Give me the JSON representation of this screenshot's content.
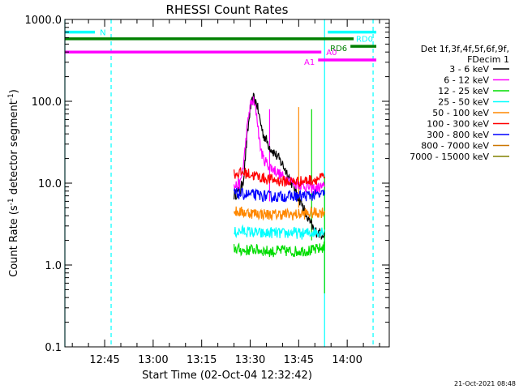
{
  "chart_data": {
    "type": "line",
    "title": "RHESSI Count Rates",
    "xlabel": "Start Time (02-Oct-04 12:32:42)",
    "ylabel_main": "Count Rate (s",
    "ylabel_sup": "-1",
    "ylabel_tail": " detector segment",
    "ylabel_sup2": "-1",
    "ylabel_close": ")",
    "y_scale": "log",
    "ylim": [
      0.1,
      1000
    ],
    "xlim": [
      "12:32:42",
      "14:13"
    ],
    "x_ticks": [
      {
        "t": "12:45",
        "label": "12:45"
      },
      {
        "t": "13:00",
        "label": "13:00"
      },
      {
        "t": "13:15",
        "label": "13:15"
      },
      {
        "t": "13:30",
        "label": "13:30"
      },
      {
        "t": "13:45",
        "label": "13:45"
      },
      {
        "t": "14:00",
        "label": "14:00"
      }
    ],
    "y_ticks": [
      {
        "v": 1000,
        "label": "1000.0"
      },
      {
        "v": 100,
        "label": "100.0"
      },
      {
        "v": 10,
        "label": "10.0"
      },
      {
        "v": 1,
        "label": "1.0"
      },
      {
        "v": 0.1,
        "label": "0.1"
      }
    ],
    "legend_header": [
      "Det 1f,3f,4f,5f,6f,9f,",
      "FDecim 1"
    ],
    "legend_placement": "right",
    "series": [
      {
        "name": "3 - 6 keV",
        "color": "#000000",
        "points": [
          [
            "13:25",
            7.2
          ],
          [
            "13:27",
            8
          ],
          [
            "13:28",
            12
          ],
          [
            "13:29",
            35
          ],
          [
            "13:30",
            80
          ],
          [
            "13:31",
            110
          ],
          [
            "13:32",
            95
          ],
          [
            "13:33",
            60
          ],
          [
            "13:34",
            40
          ],
          [
            "13:36",
            28
          ],
          [
            "13:38",
            22
          ],
          [
            "13:40",
            17
          ],
          [
            "13:42",
            12
          ],
          [
            "13:44",
            8
          ],
          [
            "13:46",
            5.5
          ],
          [
            "13:48",
            3.5
          ],
          [
            "13:50",
            2.6
          ],
          [
            "13:52",
            2.4
          ],
          [
            "13:53",
            2.5
          ]
        ]
      },
      {
        "name": "6 - 12 keV",
        "color": "#ff00ff",
        "points": [
          [
            "13:25",
            9
          ],
          [
            "13:27",
            10
          ],
          [
            "13:28",
            18
          ],
          [
            "13:29",
            45
          ],
          [
            "13:30",
            90
          ],
          [
            "13:31",
            100
          ],
          [
            "13:32",
            70
          ],
          [
            "13:33",
            30
          ],
          [
            "13:34",
            20
          ],
          [
            "13:36",
            16
          ],
          [
            "13:38",
            14
          ],
          [
            "13:40",
            12
          ],
          [
            "13:42",
            11
          ],
          [
            "13:44",
            10
          ],
          [
            "13:46",
            9.5
          ],
          [
            "13:48",
            9
          ],
          [
            "13:50",
            8.5
          ],
          [
            "13:52",
            9
          ],
          [
            "13:53",
            9
          ]
        ]
      },
      {
        "name": "12 - 25 keV",
        "color": "#00dd00",
        "points": [
          [
            "13:25",
            1.6
          ],
          [
            "13:28",
            1.5
          ],
          [
            "13:31",
            1.55
          ],
          [
            "13:34",
            1.5
          ],
          [
            "13:37",
            1.45
          ],
          [
            "13:40",
            1.5
          ],
          [
            "13:43",
            1.45
          ],
          [
            "13:46",
            1.5
          ],
          [
            "13:49",
            1.5
          ],
          [
            "13:52",
            1.6
          ],
          [
            "13:53",
            1.7
          ]
        ]
      },
      {
        "name": "25 - 50 keV",
        "color": "#00ffff",
        "points": [
          [
            "13:25",
            2.5
          ],
          [
            "13:28",
            2.6
          ],
          [
            "13:31",
            2.5
          ],
          [
            "13:34",
            2.4
          ],
          [
            "13:37",
            2.5
          ],
          [
            "13:40",
            2.4
          ],
          [
            "13:43",
            2.5
          ],
          [
            "13:46",
            2.4
          ],
          [
            "13:49",
            2.5
          ],
          [
            "13:52",
            2.6
          ],
          [
            "13:53",
            2.7
          ]
        ]
      },
      {
        "name": "50 - 100 keV",
        "color": "#ff8800",
        "points": [
          [
            "13:25",
            4.5
          ],
          [
            "13:28",
            4.4
          ],
          [
            "13:31",
            4.3
          ],
          [
            "13:34",
            4.2
          ],
          [
            "13:37",
            4.1
          ],
          [
            "13:40",
            4.2
          ],
          [
            "13:43",
            4.1
          ],
          [
            "13:46",
            4.2
          ],
          [
            "13:49",
            4.3
          ],
          [
            "13:52",
            4.4
          ],
          [
            "13:53",
            4.6
          ]
        ]
      },
      {
        "name": "100 - 300 keV",
        "color": "#ff0000",
        "points": [
          [
            "13:25",
            13
          ],
          [
            "13:28",
            13.5
          ],
          [
            "13:31",
            12.5
          ],
          [
            "13:34",
            11.5
          ],
          [
            "13:37",
            11
          ],
          [
            "13:40",
            10.5
          ],
          [
            "13:43",
            10.5
          ],
          [
            "13:46",
            10.5
          ],
          [
            "13:49",
            11
          ],
          [
            "13:52",
            11.5
          ],
          [
            "13:53",
            12
          ]
        ]
      },
      {
        "name": "300 - 800 keV",
        "color": "#0000ff",
        "points": [
          [
            "13:25",
            7.5
          ],
          [
            "13:28",
            7.3
          ],
          [
            "13:31",
            7.2
          ],
          [
            "13:34",
            7
          ],
          [
            "13:37",
            6.8
          ],
          [
            "13:40",
            6.9
          ],
          [
            "13:43",
            6.9
          ],
          [
            "13:46",
            7
          ],
          [
            "13:49",
            7.1
          ],
          [
            "13:52",
            7.2
          ],
          [
            "13:53",
            7.3
          ]
        ]
      },
      {
        "name": "800 - 7000 keV",
        "color": "#cc7700",
        "points": []
      },
      {
        "name": "7000 - 15000 keV",
        "color": "#808000",
        "points": []
      }
    ],
    "spikes": [
      {
        "t": "13:36",
        "bottom": 6,
        "top": 80,
        "color": "#ff00ff"
      },
      {
        "t": "13:45",
        "bottom": 5,
        "top": 85,
        "color": "#ff8800"
      },
      {
        "t": "13:49",
        "bottom": 2,
        "top": 80,
        "color": "#00dd00"
      },
      {
        "t": "13:53",
        "bottom": 0.45,
        "top": 12,
        "color": "#00dd00"
      }
    ],
    "state_bars": [
      {
        "label": "N",
        "color": "#00ffff",
        "y": 700,
        "start": "12:32:42",
        "end": "12:42",
        "label_side": "right"
      },
      {
        "label": "",
        "color": "#008000",
        "y": 580,
        "start": "12:32:42",
        "end": "14:02",
        "label_side": "none"
      },
      {
        "label": "RD0",
        "color": "#00ffff",
        "y": 700,
        "start": "13:54",
        "end": "14:09",
        "label_side": "below-right"
      },
      {
        "label": "RD6",
        "color": "#008000",
        "y": 470,
        "start": "14:01",
        "end": "14:09",
        "label_side": "left"
      },
      {
        "label": "A0",
        "color": "#ff00ff",
        "y": 400,
        "start": "12:32:42",
        "end": "13:52",
        "label_side": "right"
      },
      {
        "label": "A1",
        "color": "#ff00ff",
        "y": 320,
        "start": "13:51",
        "end": "14:09",
        "label_side": "left"
      }
    ],
    "vlines": [
      {
        "t": "12:32:42",
        "color": "#00ffff",
        "style": "solid"
      },
      {
        "t": "12:47",
        "color": "#00ffff",
        "style": "dashed"
      },
      {
        "t": "13:53",
        "color": "#00ffff",
        "style": "solid"
      },
      {
        "t": "14:08",
        "color": "#00ffff",
        "style": "dashed"
      }
    ],
    "timestamp": "21-Oct-2021 08:48"
  }
}
